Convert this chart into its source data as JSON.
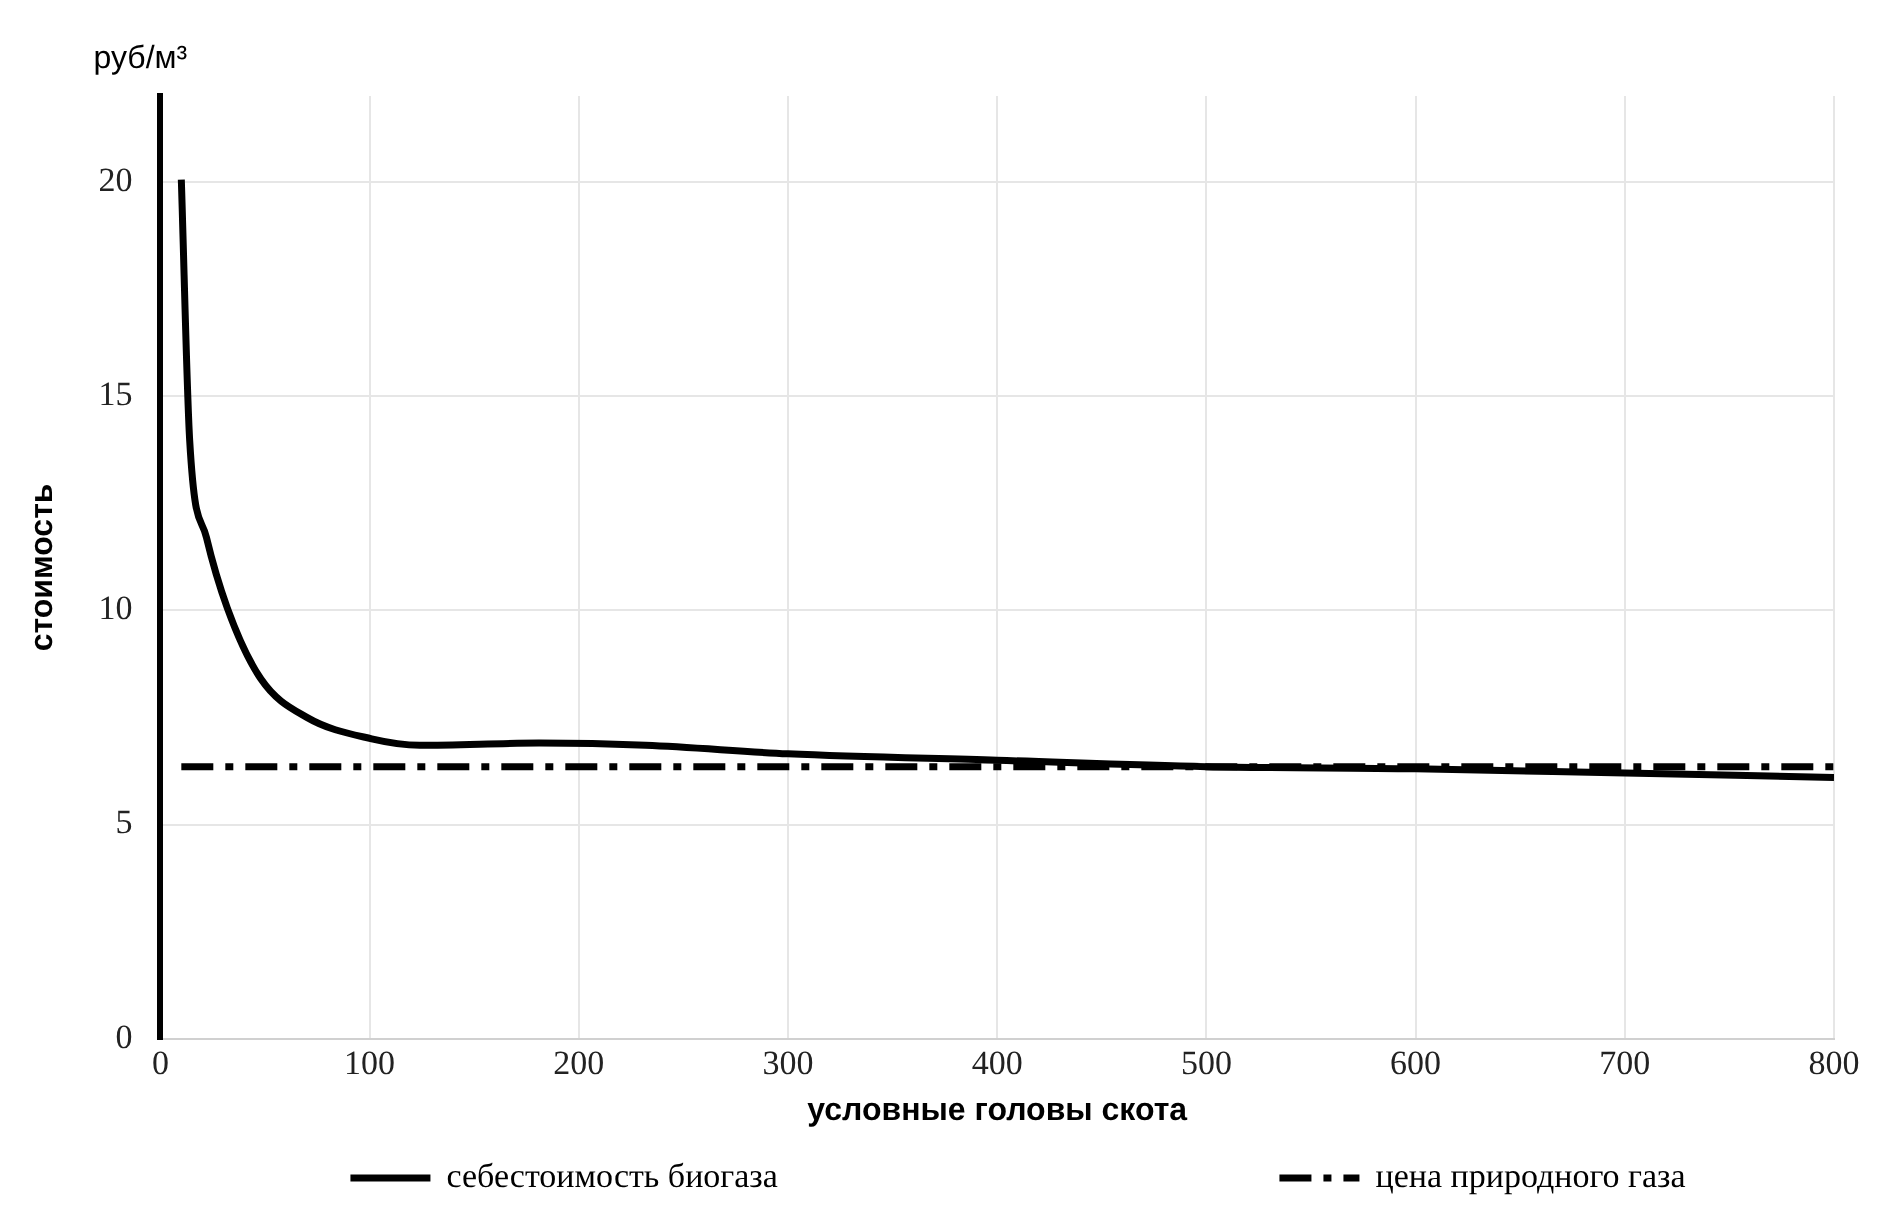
{
  "chart_data": {
    "type": "line",
    "xlabel": "условные головы скота",
    "ylabel": "стоимость",
    "annotations": [
      "руб/м³"
    ],
    "xlim": [
      0,
      800
    ],
    "xticks": [
      0,
      100,
      200,
      300,
      400,
      500,
      600,
      700,
      800
    ],
    "ylim": [
      0,
      22
    ],
    "yticks": [
      0,
      5,
      10,
      15,
      20
    ],
    "grid": true,
    "legend": "bottom",
    "marker": "none",
    "series": [
      {
        "name": "себестоимость биогаза",
        "color": "#000000",
        "line_style": "solid",
        "x": [
          10,
          14,
          22,
          32,
          48,
          70,
          101,
          124,
          181,
          232,
          300,
          400,
          500,
          600,
          700,
          800
        ],
        "values": [
          20.05,
          13.96,
          11.7,
          10.05,
          8.4,
          7.5,
          7.0,
          6.85,
          6.9,
          6.85,
          6.65,
          6.5,
          6.35,
          6.3,
          6.2,
          6.1
        ]
      },
      {
        "name": "цена природного газа",
        "color": "#000000",
        "line_style": "dashed",
        "x": [
          10,
          800
        ],
        "values": [
          6.35,
          6.35
        ]
      }
    ]
  }
}
